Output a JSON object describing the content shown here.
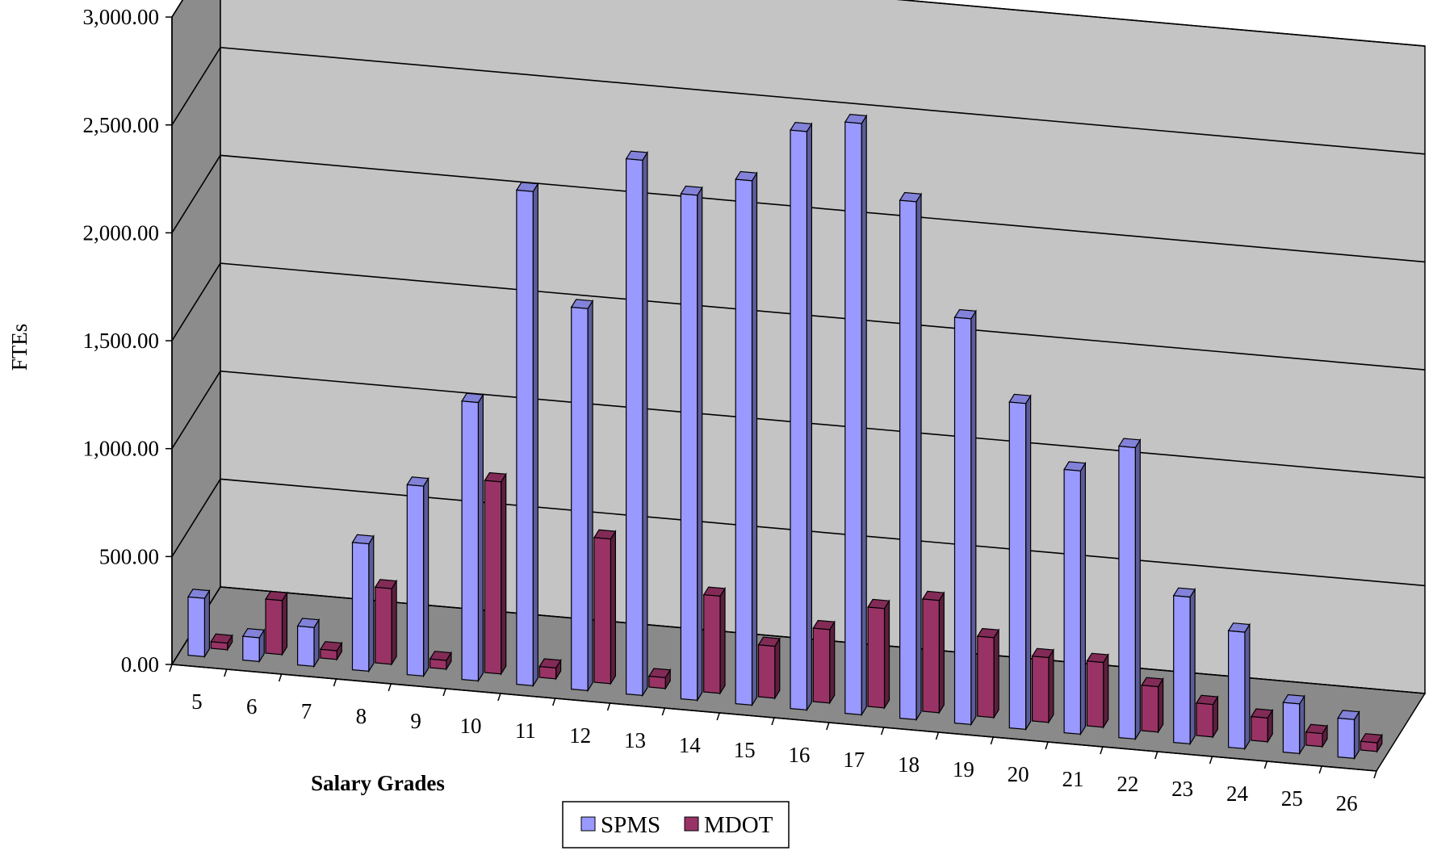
{
  "chart_data": {
    "type": "bar",
    "xlabel": "Salary Grades",
    "ylabel": "FTEs",
    "ylim": [
      0,
      3000
    ],
    "yticks": [
      "0.00",
      "500.00",
      "1,000.00",
      "1,500.00",
      "2,000.00",
      "2,500.00",
      "3,000.00"
    ],
    "categories": [
      "5",
      "6",
      "7",
      "8",
      "9",
      "10",
      "11",
      "12",
      "13",
      "14",
      "15",
      "16",
      "17",
      "18",
      "19",
      "20",
      "21",
      "22",
      "23",
      "24",
      "25",
      "26"
    ],
    "series": [
      {
        "name": "SPMS",
        "color": "#9999FF",
        "values": [
          270,
          110,
          180,
          590,
          880,
          1290,
          2290,
          1770,
          2480,
          2340,
          2430,
          2680,
          2740,
          2400,
          1880,
          1510,
          1220,
          1350,
          680,
          540,
          230,
          180
        ]
      },
      {
        "name": "MDOT",
        "color": "#993366",
        "values": [
          30,
          250,
          40,
          350,
          40,
          890,
          50,
          670,
          50,
          450,
          240,
          340,
          460,
          520,
          370,
          300,
          300,
          210,
          150,
          110,
          60,
          40
        ]
      }
    ],
    "grid": true,
    "legend": "bottom-center",
    "style": "3d-clustered-column"
  }
}
